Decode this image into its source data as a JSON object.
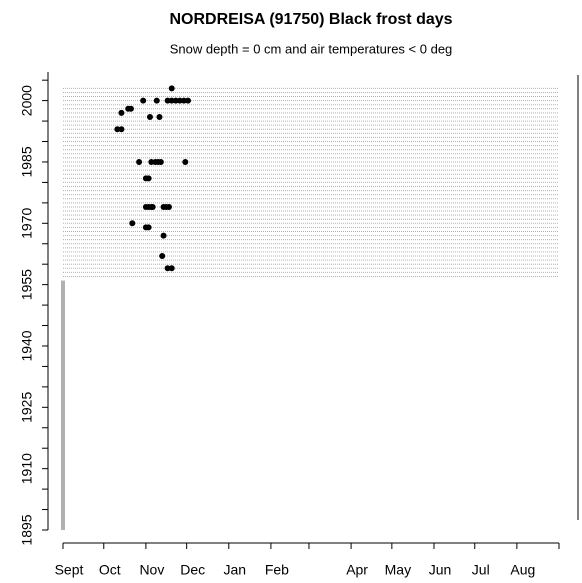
{
  "chart_data": {
    "type": "scatter",
    "title": "NORDREISA (91750) Black frost days",
    "subtitle": "Snow depth = 0 cm and air temperatures < 0 deg",
    "x": [
      80,
      59,
      69,
      77,
      80,
      83,
      86,
      89,
      92,
      48,
      50,
      43,
      64,
      71,
      40,
      43,
      56,
      65,
      68,
      70,
      72,
      90,
      61,
      63,
      61,
      63,
      65,
      66,
      74,
      76,
      78,
      51,
      61,
      63,
      74,
      73,
      77,
      80
    ],
    "y": [
      2003,
      2000,
      2000,
      2000,
      2000,
      2000,
      2000,
      2000,
      2000,
      1998,
      1998,
      1997,
      1996,
      1996,
      1993,
      1993,
      1985,
      1985,
      1985,
      1985,
      1985,
      1985,
      1981,
      1981,
      1974,
      1974,
      1974,
      1974,
      1974,
      1974,
      1974,
      1970,
      1969,
      1969,
      1967,
      1962,
      1959,
      1959
    ],
    "color": "#000000",
    "record_years": [
      1957,
      2003
    ],
    "missing_years": [
      1895,
      1956
    ],
    "coverage_color": "#b0b0b0",
    "xlim": [
      0,
      365
    ],
    "xticks": [
      {
        "value": 0,
        "label": "Sept"
      },
      {
        "value": 30,
        "label": "Oct"
      },
      {
        "value": 61,
        "label": "Nov"
      },
      {
        "value": 91,
        "label": "Dec"
      },
      {
        "value": 122,
        "label": "Jan"
      },
      {
        "value": 153,
        "label": "Feb"
      },
      {
        "value": 181,
        "label": null
      },
      {
        "value": 212,
        "label": "Apr"
      },
      {
        "value": 242,
        "label": "May"
      },
      {
        "value": 273,
        "label": "Jun"
      },
      {
        "value": 303,
        "label": "Jul"
      },
      {
        "value": 334,
        "label": "Aug"
      },
      {
        "value": 365,
        "label": null
      }
    ],
    "ylim": [
      1895,
      2007
    ],
    "yticks": [
      1895,
      1910,
      1925,
      1940,
      1955,
      1970,
      1985,
      2000
    ],
    "yminorticks": [
      1900,
      1905,
      1915,
      1920,
      1930,
      1935,
      1945,
      1950,
      1960,
      1965,
      1975,
      1980,
      1990,
      1995,
      2005
    ]
  }
}
